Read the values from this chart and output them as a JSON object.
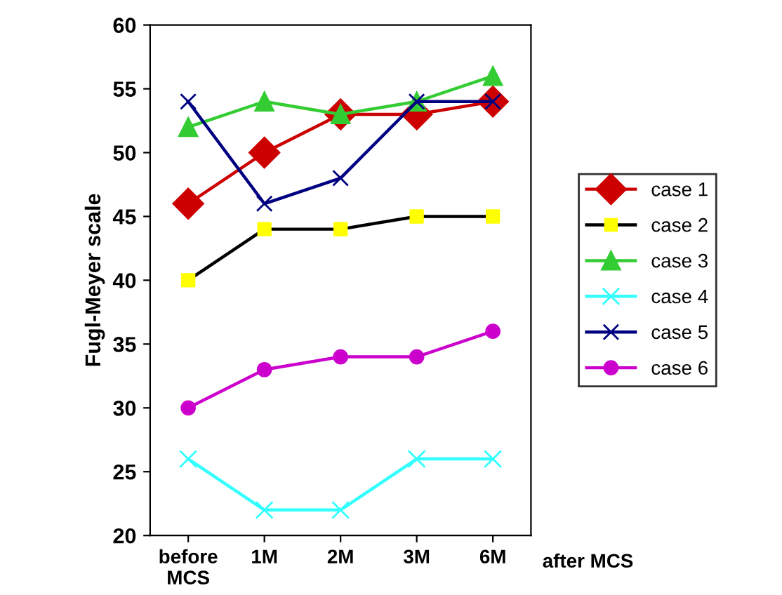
{
  "chart_data": {
    "type": "line",
    "ylabel": "Fugl-Meyer scale",
    "xlabel": "after MCS",
    "categories": [
      "before\nMCS",
      "1M",
      "2M",
      "3M",
      "6M"
    ],
    "ylim": [
      20,
      60
    ],
    "yticks": [
      20,
      25,
      30,
      35,
      40,
      45,
      50,
      55,
      60
    ],
    "grid": false,
    "legend": "right",
    "line_style": "solid",
    "series": [
      {
        "name": "case 1",
        "color": "#cc0000",
        "marker": "diamond",
        "values": [
          46,
          50,
          53,
          53,
          54
        ]
      },
      {
        "name": "case 2",
        "color": "#000000",
        "marker": "square",
        "colors": [
          "#ffff00",
          "#ffff00",
          "#ffff00",
          "#ffff00",
          "#ffff00"
        ],
        "values": [
          40,
          44,
          44,
          45,
          45
        ]
      },
      {
        "name": "case 3",
        "color": "#33cc33",
        "marker": "triangle",
        "values": [
          52,
          54,
          53,
          54,
          56
        ]
      },
      {
        "name": "case 4",
        "color": "#33ffff",
        "marker": "cross",
        "values": [
          26,
          22,
          22,
          26,
          26
        ]
      },
      {
        "name": "case 5",
        "color": "#000080",
        "marker": "cross",
        "values": [
          54,
          46,
          48,
          54,
          54
        ]
      },
      {
        "name": "case 6",
        "color": "#cc00cc",
        "marker": "circle",
        "values": [
          30,
          33,
          34,
          34,
          36
        ]
      }
    ]
  }
}
